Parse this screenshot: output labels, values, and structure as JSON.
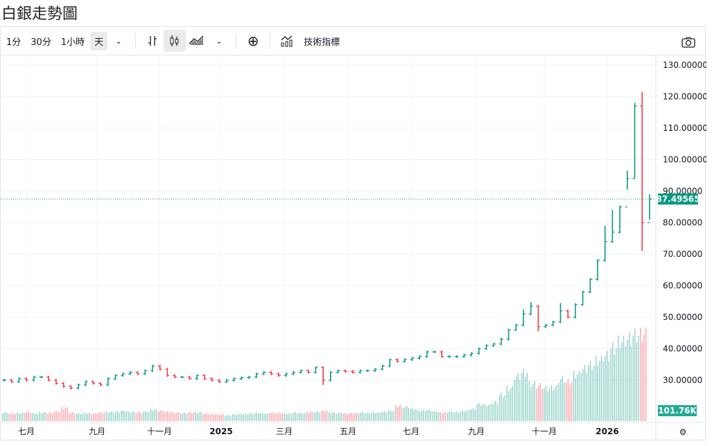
{
  "title": "白銀走勢圖",
  "toolbar": {
    "intervals": [
      "1分",
      "30分",
      "1小時",
      "天"
    ],
    "selected_interval": "天",
    "indicators_label": "技術指標",
    "icons": [
      "chevron-down-icon",
      "bar-chart-icon",
      "candlestick-icon",
      "area-chart-icon",
      "chevron-down-icon",
      "add-circle-icon",
      "indicators-icon",
      "camera-icon"
    ]
  },
  "colors": {
    "up": "#089981",
    "down": "#f23645",
    "price_label_bg": "#089981",
    "volume_label_bg": "#22ab94"
  },
  "chart_data": {
    "type": "candlestick",
    "title": "",
    "y_ticks": [
      "30.00000",
      "40.00000",
      "50.00000",
      "60.00000",
      "70.00000",
      "80.00000",
      "90.00000",
      "100.00000",
      "110.00000",
      "120.00000",
      "130.00000"
    ],
    "ylim": [
      27,
      131
    ],
    "x_ticks": [
      "七月",
      "九月",
      "十一月",
      "2025",
      "三月",
      "五月",
      "七月",
      "九月",
      "十一月",
      "2026"
    ],
    "x_tick_bold": [
      "2025",
      "2026"
    ],
    "last_price": "87.49565",
    "last_volume": "101.76K",
    "close": [
      30,
      29.5,
      30.5,
      30,
      31,
      31,
      30,
      29,
      28,
      27.5,
      28.5,
      29.5,
      29,
      28.5,
      30.5,
      31.5,
      32,
      32.5,
      32,
      33,
      34.5,
      33.5,
      31.5,
      31,
      31,
      30.5,
      31.5,
      30.5,
      30,
      29.5,
      30,
      30.5,
      30.8,
      31,
      32,
      32.5,
      32,
      31.5,
      32,
      32.5,
      33,
      32.5,
      34,
      30,
      32.5,
      33,
      32.8,
      32.5,
      33,
      33,
      33.5,
      34.5,
      36.5,
      36,
      36.5,
      37,
      37.5,
      39,
      39,
      37.5,
      37.5,
      37.5,
      38,
      38.5,
      40,
      41,
      41.5,
      43,
      46,
      47.5,
      51,
      53.5,
      47,
      47.5,
      48.5,
      52,
      50,
      54,
      58,
      62,
      68,
      74,
      77,
      85,
      94,
      117,
      80,
      87.5
    ],
    "high_overrides": {
      "70": 52.5,
      "71": 54.8,
      "75": 54.5,
      "81": 79,
      "82": 84,
      "84": 96.5,
      "85": 118,
      "86": 121.5,
      "87": 89
    },
    "low_overrides": {
      "43": 28.5,
      "72": 45.5,
      "84": 90.5,
      "85": 94,
      "86": 71,
      "87": 81
    },
    "volume_k": [
      90,
      80,
      85,
      95,
      80,
      90,
      85,
      100,
      140,
      90,
      80,
      85,
      80,
      90,
      95,
      100,
      110,
      95,
      90,
      100,
      120,
      110,
      100,
      90,
      85,
      90,
      95,
      80,
      75,
      70,
      60,
      70,
      75,
      80,
      85,
      80,
      90,
      85,
      80,
      90,
      85,
      95,
      100,
      110,
      90,
      85,
      80,
      85,
      90,
      85,
      90,
      100,
      110,
      160,
      150,
      130,
      110,
      120,
      100,
      90,
      100,
      95,
      110,
      130,
      180,
      170,
      200,
      280,
      350,
      480,
      520,
      400,
      380,
      350,
      360,
      450,
      420,
      500,
      560,
      600,
      650,
      700,
      780,
      850,
      880,
      920,
      950,
      101.76
    ]
  }
}
